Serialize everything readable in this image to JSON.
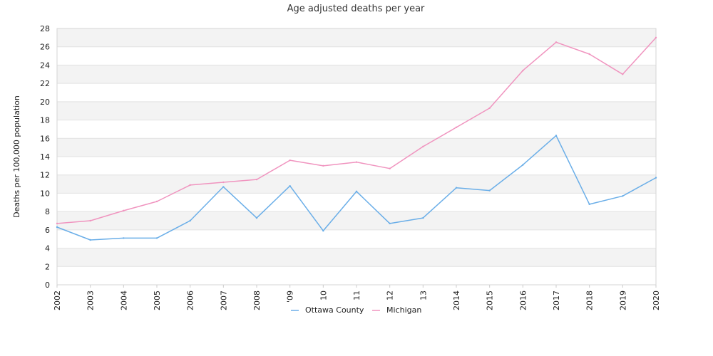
{
  "chart_data": {
    "type": "line",
    "title": "Age adjusted deaths per year",
    "xlabel": "",
    "ylabel": "Deaths per 100,000 population",
    "ylim": [
      0,
      28
    ],
    "yticks": [
      0,
      2,
      4,
      6,
      8,
      10,
      12,
      14,
      16,
      18,
      20,
      22,
      24,
      26,
      28
    ],
    "x": [
      "2002",
      "2003",
      "2004",
      "2005",
      "2006",
      "2007",
      "2008",
      "2009",
      "2010",
      "2011",
      "2012",
      "2013",
      "2014",
      "2015",
      "2016",
      "2017",
      "2018",
      "2019",
      "2020"
    ],
    "x_tick_labels": [
      "2002",
      "2003",
      "2004",
      "2005",
      "2006",
      "2007",
      "2008",
      "'09",
      "10",
      "11",
      "12",
      "13",
      "2014",
      "2015",
      "2016",
      "2017",
      "2018",
      "2019",
      "2020"
    ],
    "grid": "horizontal bands",
    "legend_position": "bottom",
    "series": [
      {
        "name": "Ottawa County",
        "color": "#6aaee8",
        "values": [
          6.3,
          4.9,
          5.1,
          5.1,
          7.0,
          10.7,
          7.3,
          10.8,
          5.9,
          10.2,
          6.7,
          7.3,
          10.6,
          10.3,
          13.1,
          16.3,
          8.8,
          9.7,
          11.7
        ]
      },
      {
        "name": "Michigan",
        "color": "#f094bf",
        "values": [
          6.7,
          7.0,
          8.1,
          9.1,
          10.9,
          11.2,
          11.5,
          13.6,
          13.0,
          13.4,
          12.7,
          15.1,
          17.2,
          19.3,
          23.4,
          26.5,
          25.2,
          23.0,
          27.0
        ]
      }
    ]
  }
}
